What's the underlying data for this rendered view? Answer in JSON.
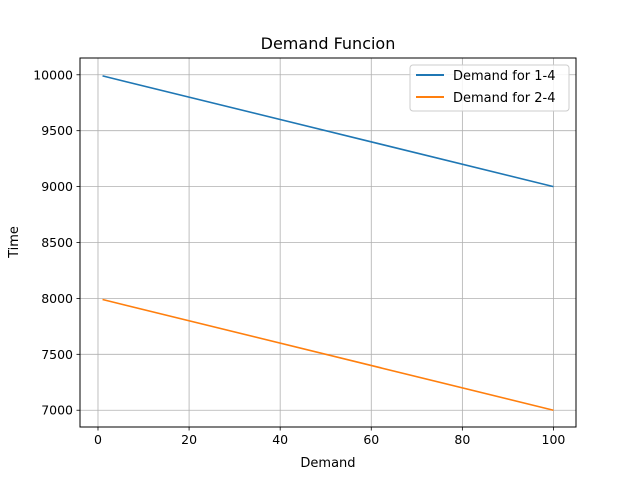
{
  "chart_data": {
    "type": "line",
    "title": "Demand Funcion",
    "xlabel": "Demand",
    "ylabel": "Time",
    "xlim": [
      -3.95,
      104.95
    ],
    "ylim": [
      6850,
      10150
    ],
    "xticks": [
      0,
      20,
      40,
      60,
      80,
      100
    ],
    "yticks": [
      7000,
      7500,
      8000,
      8500,
      9000,
      9500,
      10000
    ],
    "grid": true,
    "legend_position": "top-right",
    "series": [
      {
        "name": "Demand for 1-4",
        "color": "#1f77b4",
        "x": [
          1,
          100
        ],
        "y": [
          9990,
          9000
        ]
      },
      {
        "name": "Demand for 2-4",
        "color": "#ff7f0e",
        "x": [
          1,
          100
        ],
        "y": [
          7990,
          7000
        ]
      }
    ]
  }
}
